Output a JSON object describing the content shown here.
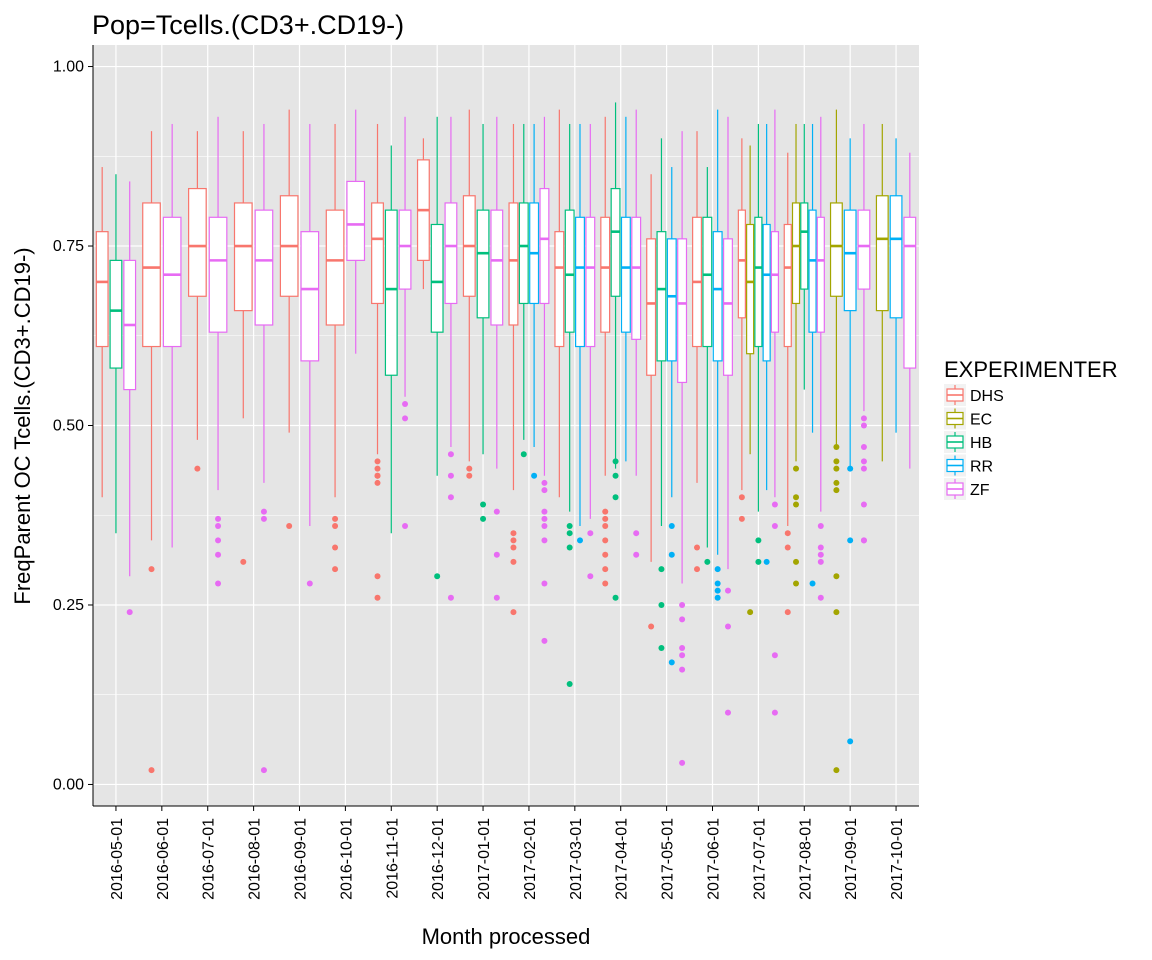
{
  "chart_data": {
    "type": "boxplot",
    "title": "Pop=Tcells.(CD3+.CD19-)",
    "xlabel": "Month processed",
    "ylabel": "FreqParent OC Tcells.(CD3+.CD19-)",
    "ylim": [
      -0.03,
      1.03
    ],
    "yticks": [
      0.0,
      0.25,
      0.5,
      0.75,
      1.0
    ],
    "ytick_labels": [
      "0.00",
      "0.25",
      "0.50",
      "0.75",
      "1.00"
    ],
    "grid": true,
    "legend_position": "right",
    "legend_title": "EXPERIMENTER",
    "colors": {
      "DHS": "#F8766D",
      "EC": "#A3A500",
      "HB": "#00BF7D",
      "RR": "#00B0F6",
      "ZF": "#E76BF3",
      "panel": "#E5E5E5",
      "grid": "#FFFFFF"
    },
    "categories": [
      "2016-05-01",
      "2016-06-01",
      "2016-07-01",
      "2016-08-01",
      "2016-09-01",
      "2016-10-01",
      "2016-11-01",
      "2016-12-01",
      "2017-01-01",
      "2017-02-01",
      "2017-03-01",
      "2017-04-01",
      "2017-05-01",
      "2017-06-01",
      "2017-07-01",
      "2017-08-01",
      "2017-09-01",
      "2017-10-01"
    ],
    "series": [
      {
        "name": "DHS"
      },
      {
        "name": "EC"
      },
      {
        "name": "HB"
      },
      {
        "name": "RR"
      },
      {
        "name": "ZF"
      }
    ],
    "groups": [
      {
        "month": "2016-05-01",
        "boxes": [
          {
            "exp": "DHS",
            "min": 0.4,
            "q1": 0.61,
            "median": 0.7,
            "q3": 0.77,
            "max": 0.86,
            "outliers": []
          },
          {
            "exp": "HB",
            "min": 0.35,
            "q1": 0.58,
            "median": 0.66,
            "q3": 0.73,
            "max": 0.85,
            "outliers": []
          },
          {
            "exp": "ZF",
            "min": 0.29,
            "q1": 0.55,
            "median": 0.64,
            "q3": 0.73,
            "max": 0.84,
            "outliers": [
              0.24
            ]
          }
        ]
      },
      {
        "month": "2016-06-01",
        "boxes": [
          {
            "exp": "DHS",
            "min": 0.34,
            "q1": 0.61,
            "median": 0.72,
            "q3": 0.81,
            "max": 0.91,
            "outliers": [
              0.3,
              0.02
            ]
          },
          {
            "exp": "ZF",
            "min": 0.33,
            "q1": 0.61,
            "median": 0.71,
            "q3": 0.79,
            "max": 0.92,
            "outliers": []
          }
        ]
      },
      {
        "month": "2016-07-01",
        "boxes": [
          {
            "exp": "DHS",
            "min": 0.48,
            "q1": 0.68,
            "median": 0.75,
            "q3": 0.83,
            "max": 0.91,
            "outliers": [
              0.44
            ]
          },
          {
            "exp": "ZF",
            "min": 0.41,
            "q1": 0.63,
            "median": 0.73,
            "q3": 0.79,
            "max": 0.93,
            "outliers": [
              0.37,
              0.36,
              0.34,
              0.32,
              0.28
            ]
          }
        ]
      },
      {
        "month": "2016-08-01",
        "boxes": [
          {
            "exp": "DHS",
            "min": 0.51,
            "q1": 0.66,
            "median": 0.75,
            "q3": 0.81,
            "max": 0.91,
            "outliers": [
              0.31
            ]
          },
          {
            "exp": "ZF",
            "min": 0.42,
            "q1": 0.64,
            "median": 0.73,
            "q3": 0.8,
            "max": 0.92,
            "outliers": [
              0.38,
              0.37,
              0.02
            ]
          }
        ]
      },
      {
        "month": "2016-09-01",
        "boxes": [
          {
            "exp": "DHS",
            "min": 0.49,
            "q1": 0.68,
            "median": 0.75,
            "q3": 0.82,
            "max": 0.94,
            "outliers": [
              0.36
            ]
          },
          {
            "exp": "ZF",
            "min": 0.36,
            "q1": 0.59,
            "median": 0.69,
            "q3": 0.77,
            "max": 0.92,
            "outliers": [
              0.28
            ]
          }
        ]
      },
      {
        "month": "2016-10-01",
        "boxes": [
          {
            "exp": "DHS",
            "min": 0.4,
            "q1": 0.64,
            "median": 0.73,
            "q3": 0.8,
            "max": 0.92,
            "outliers": [
              0.37,
              0.36,
              0.33,
              0.3
            ]
          },
          {
            "exp": "ZF",
            "min": 0.6,
            "q1": 0.73,
            "median": 0.78,
            "q3": 0.84,
            "max": 0.94,
            "outliers": []
          }
        ]
      },
      {
        "month": "2016-11-01",
        "boxes": [
          {
            "exp": "DHS",
            "min": 0.46,
            "q1": 0.67,
            "median": 0.76,
            "q3": 0.81,
            "max": 0.92,
            "outliers": [
              0.45,
              0.44,
              0.43,
              0.43,
              0.42,
              0.29,
              0.26
            ]
          },
          {
            "exp": "HB",
            "min": 0.35,
            "q1": 0.57,
            "median": 0.69,
            "q3": 0.8,
            "max": 0.89,
            "outliers": []
          },
          {
            "exp": "ZF",
            "min": 0.54,
            "q1": 0.69,
            "median": 0.75,
            "q3": 0.8,
            "max": 0.93,
            "outliers": [
              0.53,
              0.51,
              0.36
            ]
          }
        ]
      },
      {
        "month": "2016-12-01",
        "boxes": [
          {
            "exp": "DHS",
            "min": 0.69,
            "q1": 0.73,
            "median": 0.8,
            "q3": 0.87,
            "max": 0.9,
            "outliers": []
          },
          {
            "exp": "HB",
            "min": 0.43,
            "q1": 0.63,
            "median": 0.7,
            "q3": 0.78,
            "max": 0.93,
            "outliers": [
              0.29
            ]
          },
          {
            "exp": "ZF",
            "min": 0.47,
            "q1": 0.67,
            "median": 0.75,
            "q3": 0.81,
            "max": 0.93,
            "outliers": [
              0.46,
              0.43,
              0.4,
              0.26
            ]
          }
        ]
      },
      {
        "month": "2017-01-01",
        "boxes": [
          {
            "exp": "DHS",
            "min": 0.45,
            "q1": 0.68,
            "median": 0.75,
            "q3": 0.82,
            "max": 0.94,
            "outliers": [
              0.44,
              0.43
            ]
          },
          {
            "exp": "HB",
            "min": 0.46,
            "q1": 0.65,
            "median": 0.74,
            "q3": 0.8,
            "max": 0.92,
            "outliers": [
              0.39,
              0.37
            ]
          },
          {
            "exp": "ZF",
            "min": 0.44,
            "q1": 0.64,
            "median": 0.73,
            "q3": 0.8,
            "max": 0.93,
            "outliers": [
              0.38,
              0.32,
              0.26
            ]
          }
        ]
      },
      {
        "month": "2017-02-01",
        "boxes": [
          {
            "exp": "DHS",
            "min": 0.41,
            "q1": 0.64,
            "median": 0.73,
            "q3": 0.81,
            "max": 0.92,
            "outliers": [
              0.35,
              0.34,
              0.33,
              0.31,
              0.24
            ]
          },
          {
            "exp": "HB",
            "min": 0.48,
            "q1": 0.67,
            "median": 0.75,
            "q3": 0.81,
            "max": 0.92,
            "outliers": [
              0.46
            ]
          },
          {
            "exp": "RR",
            "min": 0.47,
            "q1": 0.67,
            "median": 0.74,
            "q3": 0.81,
            "max": 0.92,
            "outliers": [
              0.43
            ]
          },
          {
            "exp": "ZF",
            "min": 0.43,
            "q1": 0.67,
            "median": 0.76,
            "q3": 0.83,
            "max": 0.93,
            "outliers": [
              0.42,
              0.41,
              0.38,
              0.37,
              0.36,
              0.34,
              0.28,
              0.2
            ]
          }
        ]
      },
      {
        "month": "2017-03-01",
        "boxes": [
          {
            "exp": "DHS",
            "min": 0.4,
            "q1": 0.61,
            "median": 0.72,
            "q3": 0.77,
            "max": 0.94,
            "outliers": []
          },
          {
            "exp": "HB",
            "min": 0.38,
            "q1": 0.63,
            "median": 0.71,
            "q3": 0.8,
            "max": 0.92,
            "outliers": [
              0.36,
              0.35,
              0.33,
              0.14
            ]
          },
          {
            "exp": "RR",
            "min": 0.36,
            "q1": 0.61,
            "median": 0.72,
            "q3": 0.79,
            "max": 0.92,
            "outliers": [
              0.34
            ]
          },
          {
            "exp": "ZF",
            "min": 0.37,
            "q1": 0.61,
            "median": 0.72,
            "q3": 0.79,
            "max": 0.92,
            "outliers": [
              0.35,
              0.29
            ]
          }
        ]
      },
      {
        "month": "2017-04-01",
        "boxes": [
          {
            "exp": "DHS",
            "min": 0.43,
            "q1": 0.63,
            "median": 0.72,
            "q3": 0.79,
            "max": 0.93,
            "outliers": [
              0.38,
              0.37,
              0.36,
              0.34,
              0.32,
              0.3,
              0.28
            ]
          },
          {
            "exp": "HB",
            "min": 0.44,
            "q1": 0.68,
            "median": 0.77,
            "q3": 0.83,
            "max": 0.95,
            "outliers": [
              0.45,
              0.43,
              0.4,
              0.26
            ]
          },
          {
            "exp": "RR",
            "min": 0.45,
            "q1": 0.63,
            "median": 0.72,
            "q3": 0.79,
            "max": 0.93,
            "outliers": []
          },
          {
            "exp": "ZF",
            "min": 0.43,
            "q1": 0.62,
            "median": 0.72,
            "q3": 0.79,
            "max": 0.94,
            "outliers": [
              0.35,
              0.32
            ]
          }
        ]
      },
      {
        "month": "2017-05-01",
        "boxes": [
          {
            "exp": "DHS",
            "min": 0.31,
            "q1": 0.57,
            "median": 0.67,
            "q3": 0.76,
            "max": 0.85,
            "outliers": [
              0.22
            ]
          },
          {
            "exp": "HB",
            "min": 0.36,
            "q1": 0.59,
            "median": 0.69,
            "q3": 0.77,
            "max": 0.9,
            "outliers": [
              0.3,
              0.25,
              0.19
            ]
          },
          {
            "exp": "RR",
            "min": 0.4,
            "q1": 0.59,
            "median": 0.68,
            "q3": 0.76,
            "max": 0.86,
            "outliers": [
              0.36,
              0.32,
              0.17
            ]
          },
          {
            "exp": "ZF",
            "min": 0.28,
            "q1": 0.56,
            "median": 0.67,
            "q3": 0.76,
            "max": 0.91,
            "outliers": [
              0.25,
              0.23,
              0.19,
              0.18,
              0.16,
              0.03
            ]
          }
        ]
      },
      {
        "month": "2017-06-01",
        "boxes": [
          {
            "exp": "DHS",
            "min": 0.42,
            "q1": 0.61,
            "median": 0.7,
            "q3": 0.79,
            "max": 0.91,
            "outliers": [
              0.33,
              0.3
            ]
          },
          {
            "exp": "HB",
            "min": 0.33,
            "q1": 0.61,
            "median": 0.71,
            "q3": 0.79,
            "max": 0.86,
            "outliers": [
              0.31
            ]
          },
          {
            "exp": "RR",
            "min": 0.32,
            "q1": 0.59,
            "median": 0.69,
            "q3": 0.77,
            "max": 0.94,
            "outliers": [
              0.3,
              0.28,
              0.27,
              0.26
            ]
          },
          {
            "exp": "ZF",
            "min": 0.3,
            "q1": 0.57,
            "median": 0.67,
            "q3": 0.76,
            "max": 0.93,
            "outliers": [
              0.27,
              0.22,
              0.1
            ]
          }
        ]
      },
      {
        "month": "2017-07-01",
        "boxes": [
          {
            "exp": "DHS",
            "min": 0.41,
            "q1": 0.65,
            "median": 0.73,
            "q3": 0.8,
            "max": 0.9,
            "outliers": [
              0.4,
              0.37
            ]
          },
          {
            "exp": "EC",
            "min": 0.46,
            "q1": 0.6,
            "median": 0.7,
            "q3": 0.78,
            "max": 0.89,
            "outliers": [
              0.24
            ]
          },
          {
            "exp": "HB",
            "min": 0.38,
            "q1": 0.61,
            "median": 0.72,
            "q3": 0.79,
            "max": 0.92,
            "outliers": [
              0.34,
              0.31
            ]
          },
          {
            "exp": "RR",
            "min": 0.41,
            "q1": 0.59,
            "median": 0.71,
            "q3": 0.78,
            "max": 0.92,
            "outliers": [
              0.31
            ]
          },
          {
            "exp": "ZF",
            "min": 0.4,
            "q1": 0.63,
            "median": 0.71,
            "q3": 0.77,
            "max": 0.94,
            "outliers": [
              0.39,
              0.36,
              0.18,
              0.1
            ]
          }
        ]
      },
      {
        "month": "2017-08-01",
        "boxes": [
          {
            "exp": "DHS",
            "min": 0.36,
            "q1": 0.61,
            "median": 0.72,
            "q3": 0.78,
            "max": 0.88,
            "outliers": [
              0.35,
              0.33,
              0.24
            ]
          },
          {
            "exp": "EC",
            "min": 0.45,
            "q1": 0.67,
            "median": 0.75,
            "q3": 0.81,
            "max": 0.92,
            "outliers": [
              0.44,
              0.4,
              0.39,
              0.31,
              0.28
            ]
          },
          {
            "exp": "HB",
            "min": 0.55,
            "q1": 0.69,
            "median": 0.77,
            "q3": 0.81,
            "max": 0.92,
            "outliers": []
          },
          {
            "exp": "RR",
            "min": 0.49,
            "q1": 0.63,
            "median": 0.73,
            "q3": 0.8,
            "max": 0.92,
            "outliers": [
              0.28
            ]
          },
          {
            "exp": "ZF",
            "min": 0.38,
            "q1": 0.63,
            "median": 0.73,
            "q3": 0.79,
            "max": 0.93,
            "outliers": [
              0.36,
              0.33,
              0.32,
              0.31,
              0.26
            ]
          }
        ]
      },
      {
        "month": "2017-09-01",
        "boxes": [
          {
            "exp": "EC",
            "min": 0.47,
            "q1": 0.68,
            "median": 0.75,
            "q3": 0.81,
            "max": 0.94,
            "outliers": [
              0.47,
              0.45,
              0.44,
              0.42,
              0.41,
              0.29,
              0.24,
              0.02
            ]
          },
          {
            "exp": "RR",
            "min": 0.44,
            "q1": 0.66,
            "median": 0.74,
            "q3": 0.8,
            "max": 0.9,
            "outliers": [
              0.44,
              0.34,
              0.06
            ]
          },
          {
            "exp": "ZF",
            "min": 0.52,
            "q1": 0.69,
            "median": 0.75,
            "q3": 0.8,
            "max": 0.92,
            "outliers": [
              0.51,
              0.5,
              0.47,
              0.45,
              0.44,
              0.39,
              0.34,
              0.34
            ]
          }
        ]
      },
      {
        "month": "2017-10-01",
        "boxes": [
          {
            "exp": "EC",
            "min": 0.45,
            "q1": 0.66,
            "median": 0.76,
            "q3": 0.82,
            "max": 0.92,
            "outliers": []
          },
          {
            "exp": "RR",
            "min": 0.49,
            "q1": 0.65,
            "median": 0.76,
            "q3": 0.82,
            "max": 0.9,
            "outliers": []
          },
          {
            "exp": "ZF",
            "min": 0.44,
            "q1": 0.58,
            "median": 0.75,
            "q3": 0.79,
            "max": 0.88,
            "outliers": []
          }
        ]
      }
    ]
  }
}
